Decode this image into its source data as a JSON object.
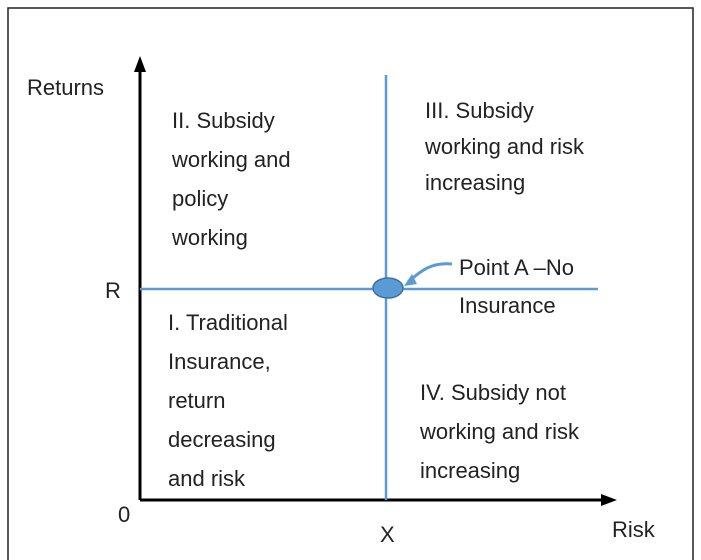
{
  "axes": {
    "y_label": "Returns",
    "x_label": "Risk",
    "origin": "0",
    "y_mark": "R",
    "x_mark": "X"
  },
  "quadrants": [
    {
      "lines": [
        "II. Subsidy",
        "working and",
        "policy",
        "working"
      ]
    },
    {
      "lines": [
        "III. Subsidy",
        "working and risk",
        "increasing"
      ]
    },
    {
      "lines": [
        "I. Traditional",
        "Insurance,",
        "return",
        "decreasing",
        "and risk"
      ]
    },
    {
      "lines": [
        "IV. Subsidy not",
        "working and risk",
        "increasing"
      ]
    }
  ],
  "point": {
    "lines": [
      "Point A –No",
      "Insurance"
    ]
  }
}
